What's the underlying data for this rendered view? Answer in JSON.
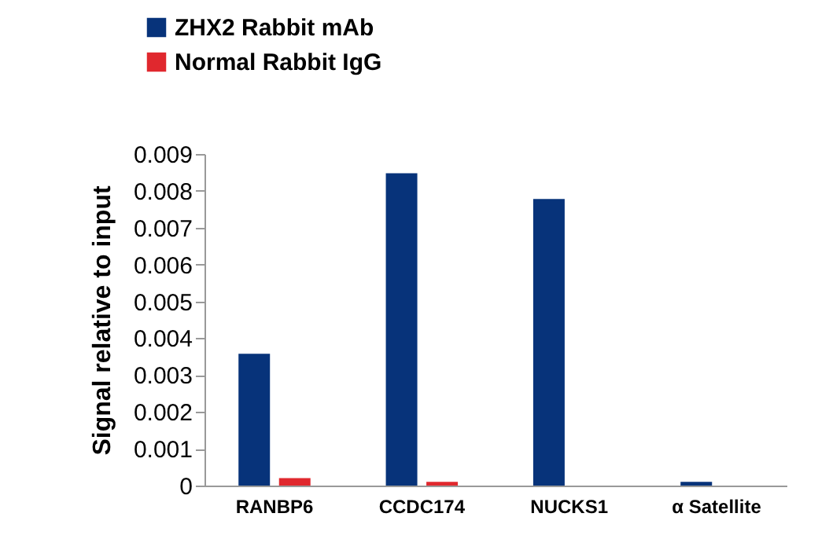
{
  "chart_data": {
    "type": "bar",
    "ylabel": "Signal relative to input",
    "categories": [
      "RANBP6",
      "CCDC174",
      "NUCKS1",
      "α Satellite"
    ],
    "series": [
      {
        "name": "ZHX2 Rabbit mAb",
        "color": "#07337a",
        "values": [
          0.00358,
          0.00848,
          0.00778,
          0.0001
        ]
      },
      {
        "name": "Normal Rabbit IgG",
        "color": "#e0282e",
        "values": [
          0.0002,
          0.0001,
          0,
          0
        ]
      }
    ],
    "ylim": [
      0,
      0.009
    ],
    "yticks": [
      0,
      0.001,
      0.002,
      0.003,
      0.004,
      0.005,
      0.006,
      0.007,
      0.008,
      0.009
    ],
    "grid": false,
    "legend": "top left"
  }
}
